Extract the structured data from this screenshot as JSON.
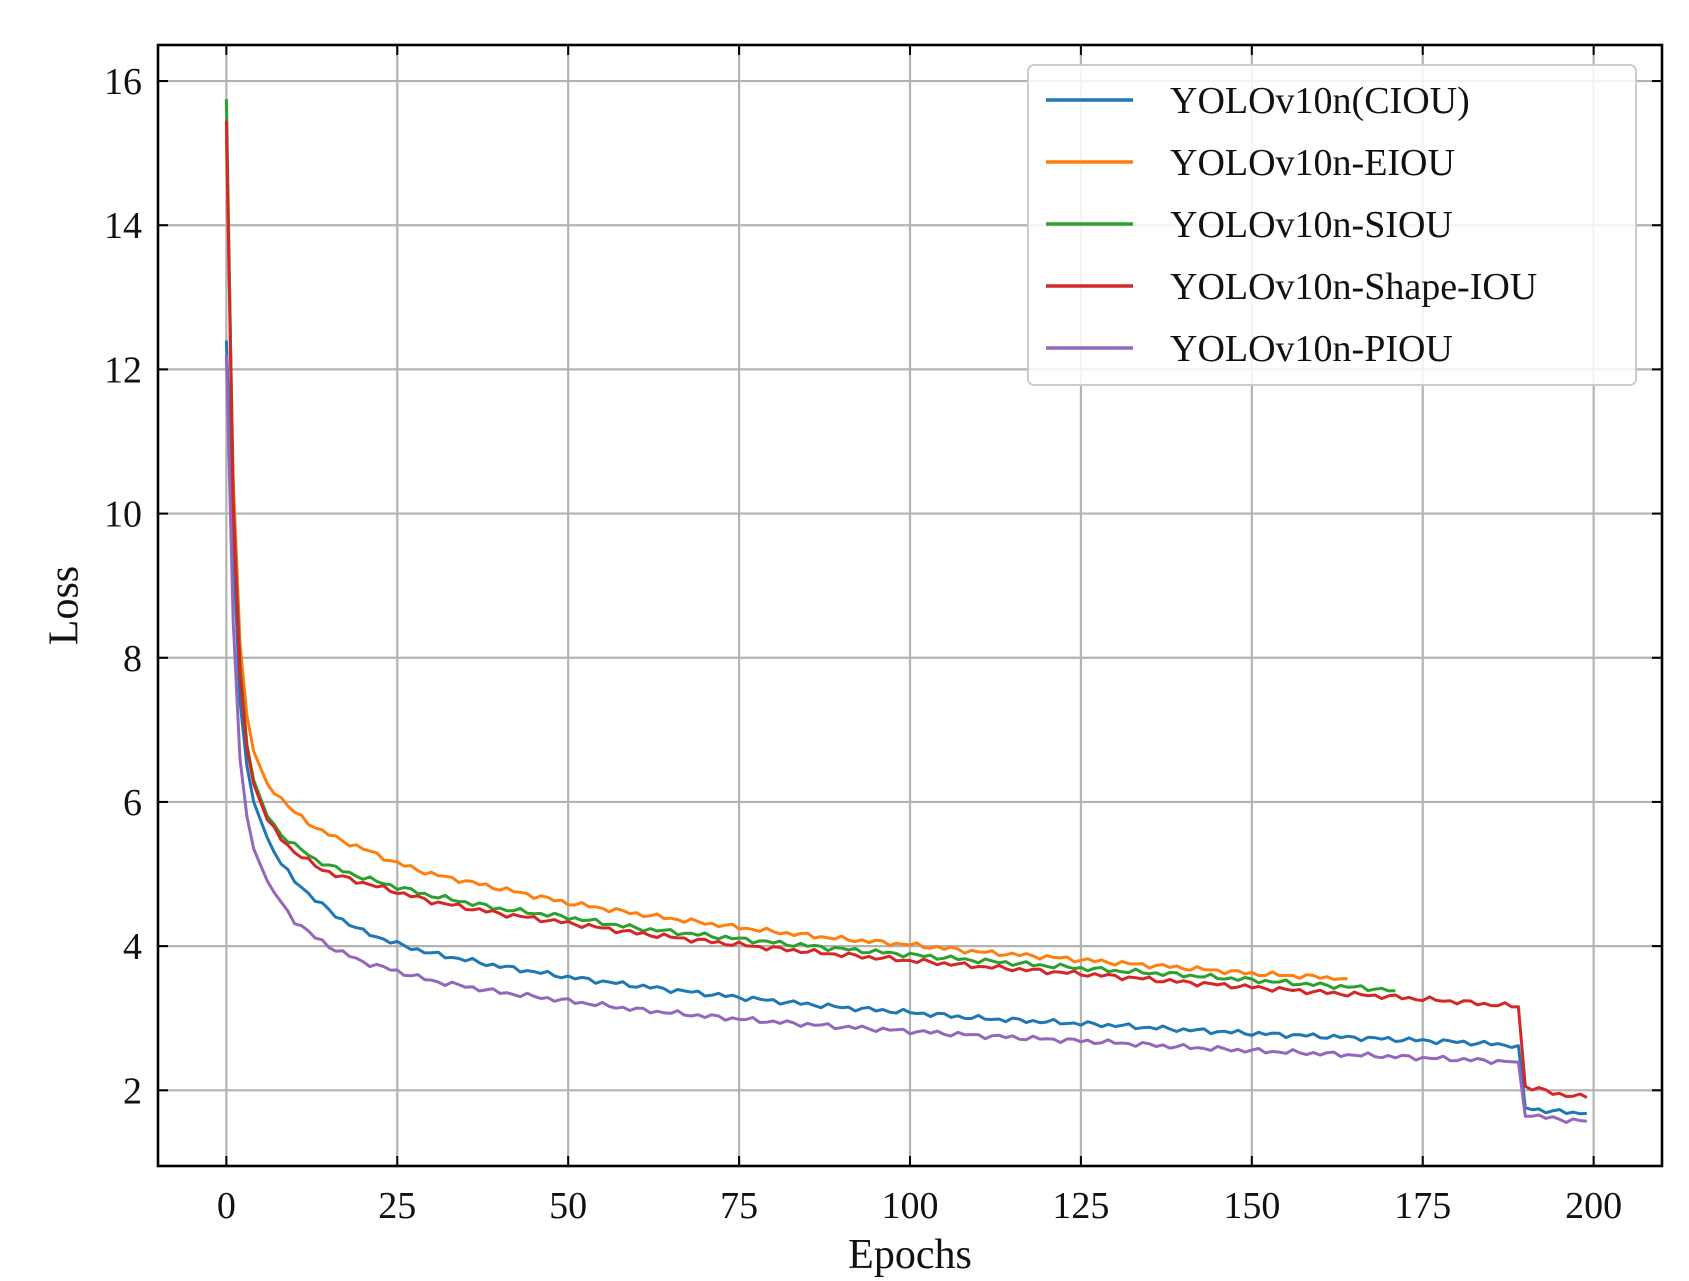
{
  "chart_data": {
    "type": "line",
    "title": "",
    "xlabel": "Epochs",
    "ylabel": "Loss",
    "xlim": [
      -10,
      210
    ],
    "ylim": [
      0.95,
      16.5
    ],
    "xticks": [
      0,
      25,
      50,
      75,
      100,
      125,
      150,
      175,
      200
    ],
    "yticks": [
      2,
      4,
      6,
      8,
      10,
      12,
      14,
      16
    ],
    "grid": true,
    "legend_position": "top-right",
    "series": [
      {
        "name": "YOLOv10n(CIOU)",
        "color": "#1f77b4",
        "points": [
          [
            0,
            12.4
          ],
          [
            1,
            9.6
          ],
          [
            2,
            7.4
          ],
          [
            3,
            6.5
          ],
          [
            4,
            6.0
          ],
          [
            6,
            5.5
          ],
          [
            8,
            5.15
          ],
          [
            10,
            4.9
          ],
          [
            13,
            4.65
          ],
          [
            16,
            4.42
          ],
          [
            20,
            4.2
          ],
          [
            25,
            4.03
          ],
          [
            30,
            3.9
          ],
          [
            40,
            3.72
          ],
          [
            50,
            3.57
          ],
          [
            60,
            3.45
          ],
          [
            70,
            3.34
          ],
          [
            80,
            3.24
          ],
          [
            90,
            3.15
          ],
          [
            100,
            3.08
          ],
          [
            110,
            3.0
          ],
          [
            120,
            2.95
          ],
          [
            130,
            2.9
          ],
          [
            140,
            2.84
          ],
          [
            150,
            2.79
          ],
          [
            160,
            2.75
          ],
          [
            170,
            2.71
          ],
          [
            180,
            2.67
          ],
          [
            189,
            2.62
          ],
          [
            190,
            1.75
          ],
          [
            192,
            1.73
          ],
          [
            195,
            1.7
          ],
          [
            199,
            1.68
          ]
        ]
      },
      {
        "name": "YOLOv10n-EIOU",
        "color": "#ff7f0e",
        "points": [
          [
            0,
            15.2
          ],
          [
            1,
            10.5
          ],
          [
            2,
            8.2
          ],
          [
            3,
            7.2
          ],
          [
            4,
            6.7
          ],
          [
            6,
            6.25
          ],
          [
            8,
            6.05
          ],
          [
            10,
            5.85
          ],
          [
            13,
            5.65
          ],
          [
            16,
            5.5
          ],
          [
            20,
            5.35
          ],
          [
            25,
            5.15
          ],
          [
            30,
            5.0
          ],
          [
            40,
            4.8
          ],
          [
            50,
            4.6
          ],
          [
            60,
            4.45
          ],
          [
            70,
            4.32
          ],
          [
            80,
            4.2
          ],
          [
            90,
            4.1
          ],
          [
            100,
            4.02
          ],
          [
            110,
            3.92
          ],
          [
            120,
            3.85
          ],
          [
            130,
            3.77
          ],
          [
            140,
            3.7
          ],
          [
            150,
            3.62
          ],
          [
            160,
            3.57
          ],
          [
            164,
            3.55
          ]
        ]
      },
      {
        "name": "YOLOv10n-SIOU",
        "color": "#2ca02c",
        "points": [
          [
            0,
            15.75
          ],
          [
            1,
            10.2
          ],
          [
            2,
            7.9
          ],
          [
            3,
            6.8
          ],
          [
            4,
            6.3
          ],
          [
            6,
            5.8
          ],
          [
            8,
            5.55
          ],
          [
            10,
            5.4
          ],
          [
            13,
            5.2
          ],
          [
            16,
            5.08
          ],
          [
            20,
            4.95
          ],
          [
            25,
            4.82
          ],
          [
            30,
            4.7
          ],
          [
            40,
            4.52
          ],
          [
            50,
            4.4
          ],
          [
            60,
            4.25
          ],
          [
            70,
            4.15
          ],
          [
            80,
            4.05
          ],
          [
            90,
            3.96
          ],
          [
            100,
            3.88
          ],
          [
            110,
            3.8
          ],
          [
            120,
            3.73
          ],
          [
            130,
            3.66
          ],
          [
            140,
            3.6
          ],
          [
            150,
            3.53
          ],
          [
            160,
            3.46
          ],
          [
            168,
            3.41
          ],
          [
            171,
            3.38
          ]
        ]
      },
      {
        "name": "YOLOv10n-Shape-IOU",
        "color": "#d62728",
        "points": [
          [
            0,
            15.45
          ],
          [
            1,
            10.1
          ],
          [
            2,
            7.8
          ],
          [
            3,
            6.75
          ],
          [
            4,
            6.25
          ],
          [
            6,
            5.75
          ],
          [
            8,
            5.5
          ],
          [
            10,
            5.3
          ],
          [
            13,
            5.12
          ],
          [
            16,
            4.98
          ],
          [
            20,
            4.88
          ],
          [
            25,
            4.75
          ],
          [
            30,
            4.62
          ],
          [
            40,
            4.45
          ],
          [
            50,
            4.32
          ],
          [
            60,
            4.18
          ],
          [
            70,
            4.07
          ],
          [
            80,
            3.97
          ],
          [
            90,
            3.88
          ],
          [
            100,
            3.8
          ],
          [
            110,
            3.72
          ],
          [
            120,
            3.65
          ],
          [
            130,
            3.58
          ],
          [
            140,
            3.5
          ],
          [
            150,
            3.43
          ],
          [
            160,
            3.36
          ],
          [
            170,
            3.3
          ],
          [
            180,
            3.23
          ],
          [
            189,
            3.16
          ],
          [
            190,
            2.05
          ],
          [
            193,
            1.99
          ],
          [
            196,
            1.93
          ],
          [
            199,
            1.9
          ]
        ]
      },
      {
        "name": "YOLOv10n-PIOU",
        "color": "#9467bd",
        "points": [
          [
            0,
            12.2
          ],
          [
            1,
            8.5
          ],
          [
            2,
            6.6
          ],
          [
            3,
            5.8
          ],
          [
            4,
            5.35
          ],
          [
            6,
            4.9
          ],
          [
            8,
            4.6
          ],
          [
            10,
            4.35
          ],
          [
            13,
            4.12
          ],
          [
            16,
            3.95
          ],
          [
            20,
            3.78
          ],
          [
            25,
            3.65
          ],
          [
            30,
            3.52
          ],
          [
            40,
            3.36
          ],
          [
            50,
            3.24
          ],
          [
            60,
            3.12
          ],
          [
            70,
            3.03
          ],
          [
            80,
            2.95
          ],
          [
            90,
            2.88
          ],
          [
            100,
            2.82
          ],
          [
            110,
            2.76
          ],
          [
            120,
            2.71
          ],
          [
            130,
            2.66
          ],
          [
            140,
            2.6
          ],
          [
            150,
            2.55
          ],
          [
            160,
            2.51
          ],
          [
            170,
            2.47
          ],
          [
            180,
            2.43
          ],
          [
            189,
            2.39
          ],
          [
            190,
            1.67
          ],
          [
            193,
            1.62
          ],
          [
            196,
            1.59
          ],
          [
            199,
            1.57
          ]
        ]
      }
    ]
  }
}
